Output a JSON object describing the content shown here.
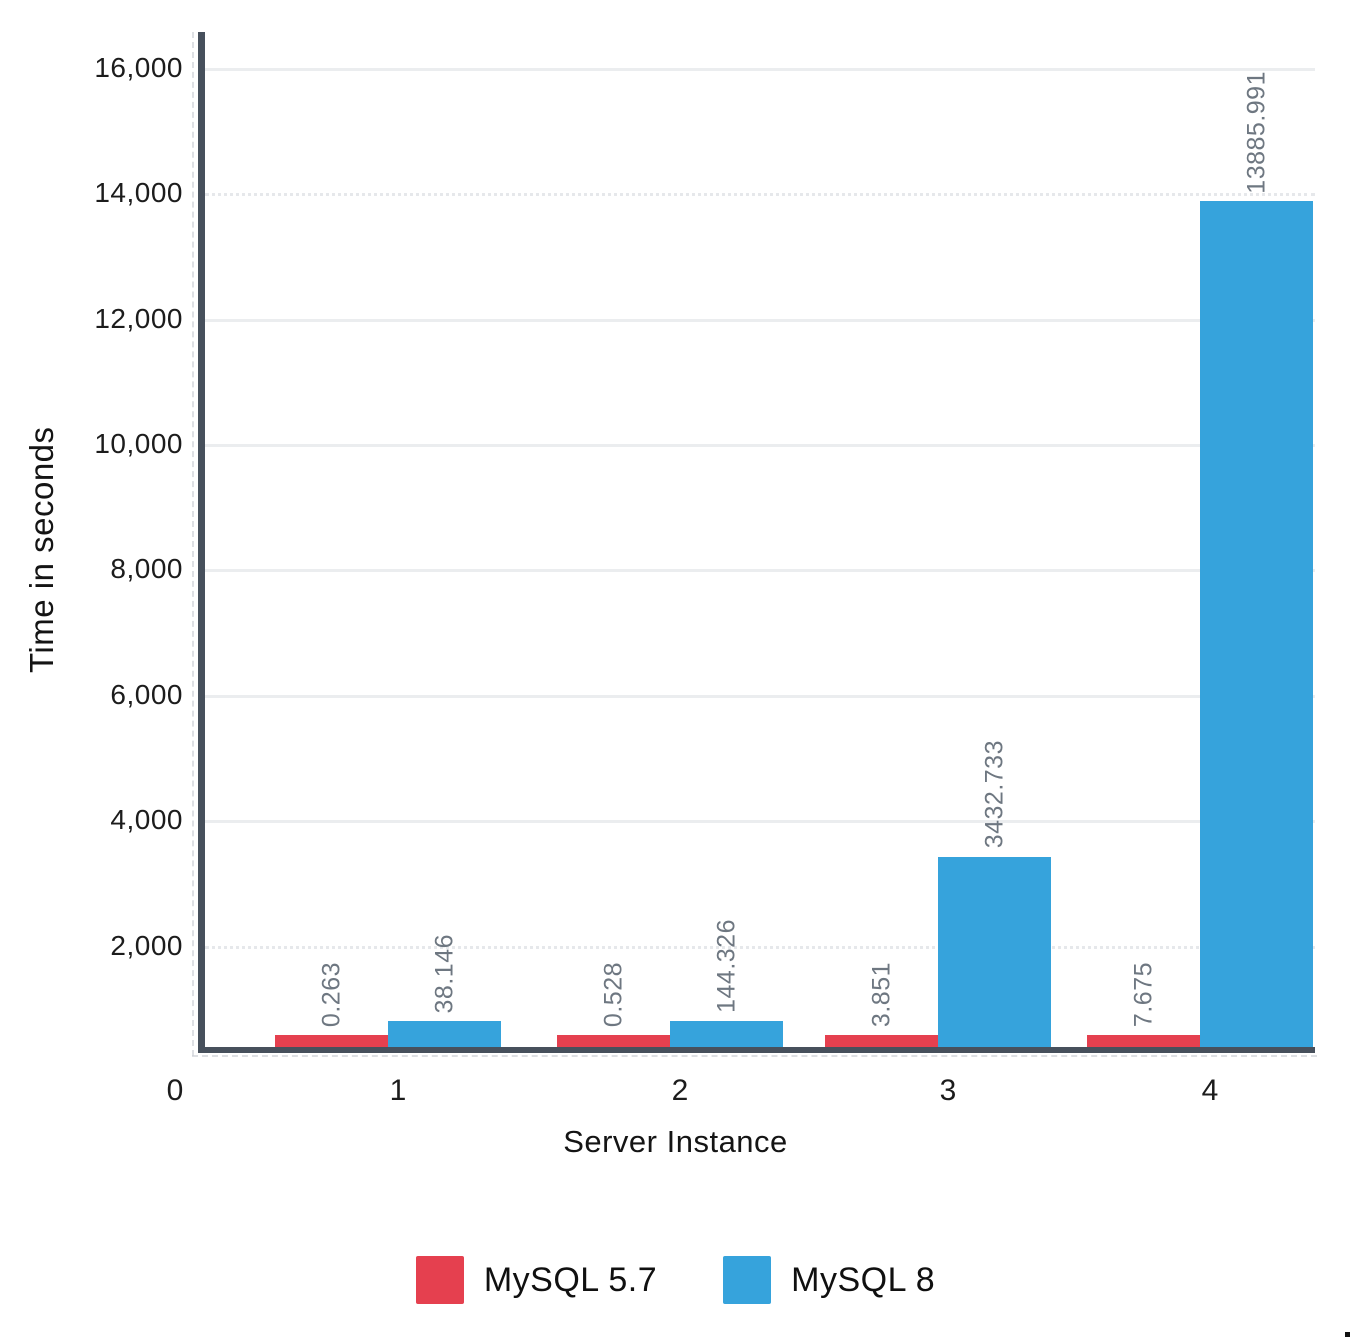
{
  "chart_data": {
    "type": "bar",
    "categories": [
      "1",
      "2",
      "3",
      "4"
    ],
    "series": [
      {
        "name": "MySQL 5.7",
        "color": "#e5404f",
        "values": [
          0.263,
          0.528,
          3.851,
          7.675
        ]
      },
      {
        "name": "MySQL 8",
        "color": "#36a3dc",
        "values": [
          38.146,
          144.326,
          3432.733,
          13885.991
        ]
      }
    ],
    "data_labels": [
      [
        "0.263",
        "0.528",
        "3.851",
        "7.675"
      ],
      [
        "38.146",
        "144.326",
        "3432.733",
        "13885.991"
      ]
    ],
    "title": "",
    "xlabel": "Server Instance",
    "ylabel": "Time in seconds",
    "ylim": [
      0,
      16500
    ],
    "yticks": [
      2000,
      4000,
      6000,
      8000,
      10000,
      12000,
      14000,
      16000
    ],
    "ytick_labels": [
      "2,000",
      "4,000",
      "6,000",
      "8,000",
      "10,000",
      "12,000",
      "14,000",
      "16,000"
    ],
    "x_axis_origin_label": "0",
    "grid": true,
    "dotted_gridlines": [
      2000,
      14000
    ],
    "data_labels_rotated": true,
    "legend_position": "bottom",
    "colors": {
      "axis": "#47505c",
      "gridline": "#ebedef",
      "value_label": "#6e7781",
      "tick_label": "#1c1c1c",
      "background": "#ffffff"
    }
  }
}
